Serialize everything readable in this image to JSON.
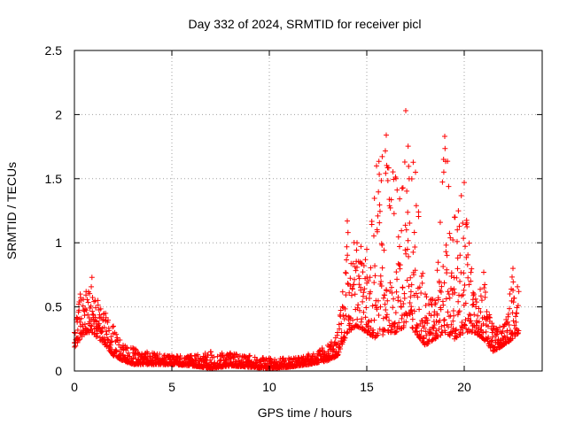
{
  "chart_data": {
    "type": "scatter",
    "title": "Day 332 of 2024, SRMTID for receiver picl",
    "xlabel": "GPS time / hours",
    "ylabel": "SRMTID / TECUs",
    "xlim": [
      0,
      24
    ],
    "ylim": [
      0,
      2.5
    ],
    "x_ticks": [
      0,
      5,
      10,
      15,
      20
    ],
    "x_tick_labels": [
      "0",
      "5",
      "10",
      "15",
      "20"
    ],
    "y_ticks": [
      0,
      0.5,
      1,
      1.5,
      2,
      2.5
    ],
    "y_tick_labels": [
      "0",
      "0.5",
      "1",
      "1.5",
      "2",
      "2.5"
    ],
    "grid": true,
    "marker": "+",
    "series": [
      {
        "name": "picl",
        "color": "#ff0000",
        "envelope": {
          "x": [
            0,
            0.3,
            0.6,
            0.9,
            1.2,
            1.6,
            2.0,
            2.5,
            3.0,
            4.0,
            5.0,
            6.0,
            7.0,
            8.0,
            9.0,
            10.0,
            11.0,
            12.0,
            13.0,
            13.5,
            14.0,
            14.5,
            15.0,
            15.5,
            16.0,
            16.5,
            17.0,
            17.5,
            18.0,
            18.5,
            19.0,
            19.5,
            20.0,
            20.5,
            21.0,
            21.5,
            22.0,
            22.5,
            22.8
          ],
          "low": [
            0.18,
            0.25,
            0.3,
            0.3,
            0.25,
            0.2,
            0.12,
            0.08,
            0.05,
            0.05,
            0.05,
            0.04,
            0.02,
            0.04,
            0.03,
            0.02,
            0.03,
            0.05,
            0.08,
            0.12,
            0.3,
            0.35,
            0.3,
            0.25,
            0.3,
            0.3,
            0.35,
            0.3,
            0.2,
            0.25,
            0.3,
            0.25,
            0.3,
            0.3,
            0.25,
            0.15,
            0.2,
            0.25,
            0.3
          ],
          "high": [
            0.3,
            0.6,
            0.62,
            0.73,
            0.55,
            0.45,
            0.35,
            0.2,
            0.18,
            0.14,
            0.12,
            0.12,
            0.15,
            0.14,
            0.12,
            0.1,
            0.1,
            0.13,
            0.2,
            0.3,
            1.17,
            1.0,
            0.95,
            1.6,
            1.84,
            1.5,
            2.03,
            1.55,
            0.6,
            0.55,
            1.83,
            1.2,
            1.47,
            0.6,
            0.77,
            0.35,
            0.35,
            0.8,
            0.62
          ]
        }
      }
    ]
  }
}
